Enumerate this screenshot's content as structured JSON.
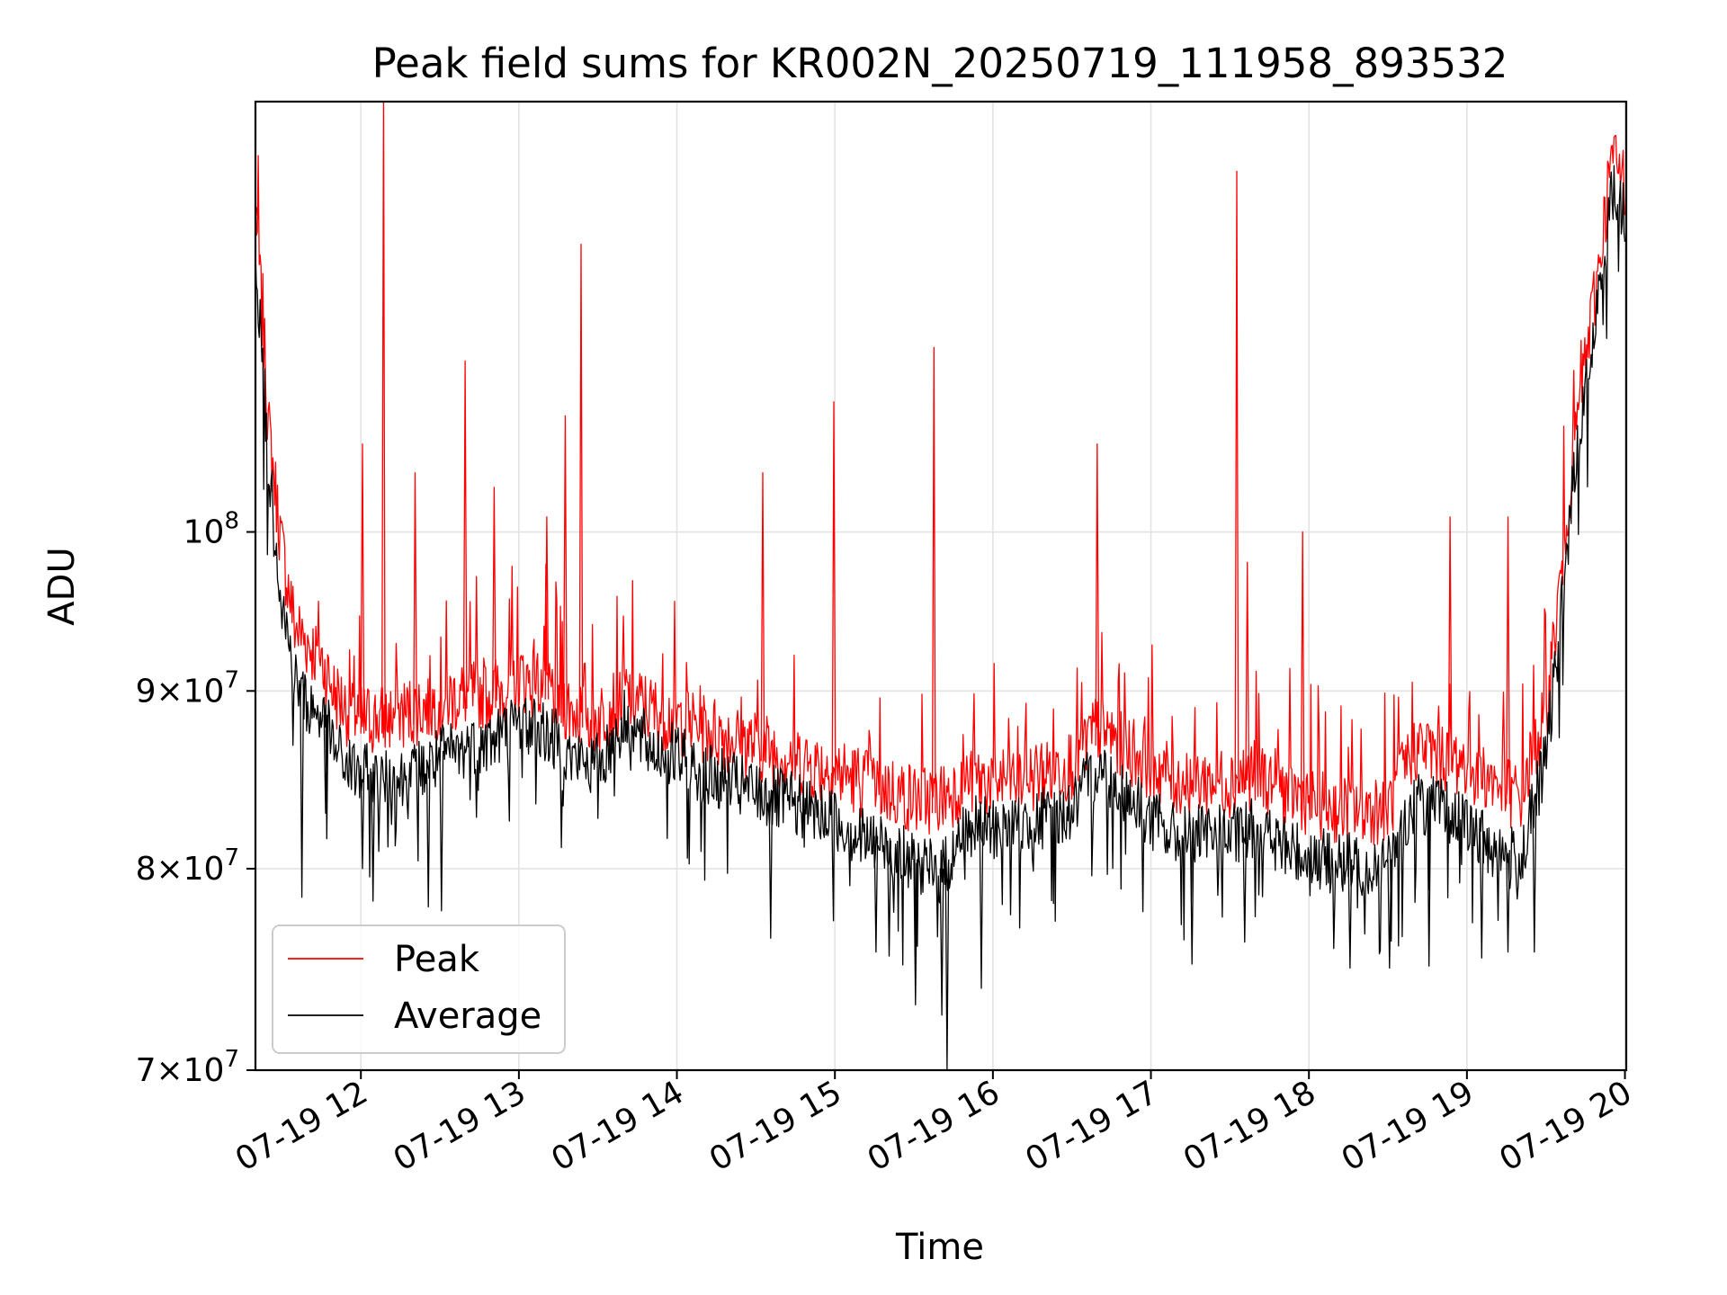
{
  "chart_data": {
    "type": "line",
    "title": "Peak field sums for KR002N_20250719_111958_893532",
    "xlabel": "Time",
    "ylabel": "ADU",
    "y_scale": "log",
    "ylim": [
      70000000,
      133000000
    ],
    "xlim": [
      "2025-07-19 11:19:58",
      "2025-07-19 20:00:30"
    ],
    "grid": true,
    "legend_location": "lower left",
    "x_tick_labels": [
      "07-19 12",
      "07-19 13",
      "07-19 14",
      "07-19 15",
      "07-19 16",
      "07-19 17",
      "07-19 18",
      "07-19 19",
      "07-19 20"
    ],
    "y_tick_labels": [
      {
        "value": 70000000,
        "mantissa": "7",
        "exponent": "7"
      },
      {
        "value": 80000000,
        "mantissa": "8",
        "exponent": "7"
      },
      {
        "value": 90000000,
        "mantissa": "9",
        "exponent": "7"
      },
      {
        "value": 100000000,
        "mantissa": "",
        "exponent": "8"
      }
    ],
    "series": [
      {
        "name": "Peak",
        "color": "#ff0000",
        "points": [
          [
            "11:20",
            123000000
          ],
          [
            "11:25",
            106000000
          ],
          [
            "11:30",
            98000000
          ],
          [
            "11:35",
            93000000
          ],
          [
            "11:40",
            92000000
          ],
          [
            "11:45",
            91000000
          ],
          [
            "11:50",
            89000000
          ],
          [
            "11:55",
            88000000
          ],
          [
            "12:00",
            87500000
          ],
          [
            "12:10",
            87500000
          ],
          [
            "12:20",
            88000000
          ],
          [
            "12:30",
            88500000
          ],
          [
            "12:40",
            89000000
          ],
          [
            "12:50",
            89000000
          ],
          [
            "13:00",
            90000000
          ],
          [
            "13:10",
            89500000
          ],
          [
            "13:20",
            88000000
          ],
          [
            "13:30",
            87500000
          ],
          [
            "13:40",
            89000000
          ],
          [
            "13:50",
            88000000
          ],
          [
            "14:00",
            87500000
          ],
          [
            "14:10",
            87000000
          ],
          [
            "14:20",
            86500000
          ],
          [
            "14:30",
            86000000
          ],
          [
            "14:40",
            85500000
          ],
          [
            "14:50",
            85000000
          ],
          [
            "15:00",
            84500000
          ],
          [
            "15:10",
            84000000
          ],
          [
            "15:20",
            83500000
          ],
          [
            "15:30",
            83000000
          ],
          [
            "15:40",
            83000000
          ],
          [
            "15:50",
            84000000
          ],
          [
            "16:00",
            84000000
          ],
          [
            "16:10",
            84000000
          ],
          [
            "16:20",
            84500000
          ],
          [
            "16:30",
            85000000
          ],
          [
            "16:40",
            87000000
          ],
          [
            "16:50",
            86000000
          ],
          [
            "17:00",
            85000000
          ],
          [
            "17:10",
            84000000
          ],
          [
            "17:20",
            84000000
          ],
          [
            "17:30",
            84000000
          ],
          [
            "17:40",
            84500000
          ],
          [
            "17:50",
            83500000
          ],
          [
            "18:00",
            83000000
          ],
          [
            "18:10",
            82500000
          ],
          [
            "18:20",
            82500000
          ],
          [
            "18:30",
            82500000
          ],
          [
            "18:40",
            86000000
          ],
          [
            "18:50",
            85500000
          ],
          [
            "19:00",
            85000000
          ],
          [
            "19:10",
            84000000
          ],
          [
            "19:20",
            83000000
          ],
          [
            "19:30",
            88000000
          ],
          [
            "19:35",
            95000000
          ],
          [
            "19:40",
            104000000
          ],
          [
            "19:45",
            111000000
          ],
          [
            "19:50",
            118000000
          ],
          [
            "19:55",
            127000000
          ],
          [
            "20:00",
            125000000
          ]
        ],
        "spikes": [
          [
            "11:20",
            124000000
          ],
          [
            "12:00",
            106000000
          ],
          [
            "12:08",
            134000000
          ],
          [
            "12:20",
            104000000
          ],
          [
            "12:39",
            112000000
          ],
          [
            "12:50",
            103000000
          ],
          [
            "13:10",
            101000000
          ],
          [
            "13:17",
            108000000
          ],
          [
            "13:23",
            121000000
          ],
          [
            "14:32",
            104000000
          ],
          [
            "14:59",
            109000000
          ],
          [
            "15:37",
            113000000
          ],
          [
            "16:39",
            106000000
          ],
          [
            "17:32",
            127000000
          ],
          [
            "17:36",
            98000000
          ],
          [
            "17:57",
            100000000
          ],
          [
            "18:53",
            101000000
          ],
          [
            "19:15",
            101000000
          ]
        ]
      },
      {
        "name": "Average",
        "color": "#000000",
        "points": [
          [
            "11:20",
            121000000
          ],
          [
            "11:25",
            105000000
          ],
          [
            "11:30",
            96000000
          ],
          [
            "11:35",
            91000000
          ],
          [
            "11:40",
            89500000
          ],
          [
            "11:45",
            89000000
          ],
          [
            "11:50",
            87000000
          ],
          [
            "11:55",
            86000000
          ],
          [
            "12:00",
            85500000
          ],
          [
            "12:10",
            85000000
          ],
          [
            "12:20",
            85500000
          ],
          [
            "12:30",
            86500000
          ],
          [
            "12:40",
            87000000
          ],
          [
            "12:50",
            87500000
          ],
          [
            "13:00",
            88500000
          ],
          [
            "13:10",
            88000000
          ],
          [
            "13:20",
            86500000
          ],
          [
            "13:30",
            86000000
          ],
          [
            "13:40",
            88500000
          ],
          [
            "13:50",
            87000000
          ],
          [
            "14:00",
            86500000
          ],
          [
            "14:10",
            85500000
          ],
          [
            "14:20",
            85000000
          ],
          [
            "14:30",
            84500000
          ],
          [
            "14:40",
            84000000
          ],
          [
            "14:50",
            83500000
          ],
          [
            "15:00",
            83000000
          ],
          [
            "15:10",
            82000000
          ],
          [
            "15:20",
            81500000
          ],
          [
            "15:30",
            80500000
          ],
          [
            "15:40",
            80000000
          ],
          [
            "15:50",
            82500000
          ],
          [
            "16:00",
            82500000
          ],
          [
            "16:10",
            82500000
          ],
          [
            "16:20",
            83000000
          ],
          [
            "16:30",
            83500000
          ],
          [
            "16:40",
            86000000
          ],
          [
            "16:50",
            84500000
          ],
          [
            "17:00",
            83000000
          ],
          [
            "17:10",
            82000000
          ],
          [
            "17:20",
            82000000
          ],
          [
            "17:30",
            82000000
          ],
          [
            "17:40",
            82500000
          ],
          [
            "17:50",
            81500000
          ],
          [
            "18:00",
            81000000
          ],
          [
            "18:10",
            80500000
          ],
          [
            "18:20",
            80500000
          ],
          [
            "18:30",
            80500000
          ],
          [
            "18:40",
            84000000
          ],
          [
            "18:50",
            83500000
          ],
          [
            "19:00",
            82500000
          ],
          [
            "19:10",
            81500000
          ],
          [
            "19:20",
            80500000
          ],
          [
            "19:30",
            86500000
          ],
          [
            "19:35",
            93500000
          ],
          [
            "19:40",
            103000000
          ],
          [
            "19:45",
            110000000
          ],
          [
            "19:50",
            117000000
          ],
          [
            "19:55",
            126000000
          ],
          [
            "20:00",
            124000000
          ]
        ],
        "dips": [
          [
            "11:37",
            78500000
          ],
          [
            "11:46",
            83000000
          ],
          [
            "12:00",
            80000000
          ],
          [
            "12:04",
            78300000
          ],
          [
            "12:25",
            78000000
          ],
          [
            "12:30",
            77800000
          ],
          [
            "14:35",
            76400000
          ],
          [
            "15:15",
            75700000
          ],
          [
            "15:20",
            75500000
          ],
          [
            "15:30",
            73100000
          ],
          [
            "15:40",
            72600000
          ],
          [
            "15:42",
            70000000
          ],
          [
            "15:55",
            73900000
          ],
          [
            "17:15",
            75100000
          ],
          [
            "17:35",
            76200000
          ],
          [
            "18:15",
            74900000
          ],
          [
            "18:30",
            74900000
          ],
          [
            "18:45",
            75000000
          ],
          [
            "19:05",
            75400000
          ],
          [
            "19:15",
            75700000
          ],
          [
            "19:25",
            75700000
          ]
        ]
      }
    ]
  }
}
